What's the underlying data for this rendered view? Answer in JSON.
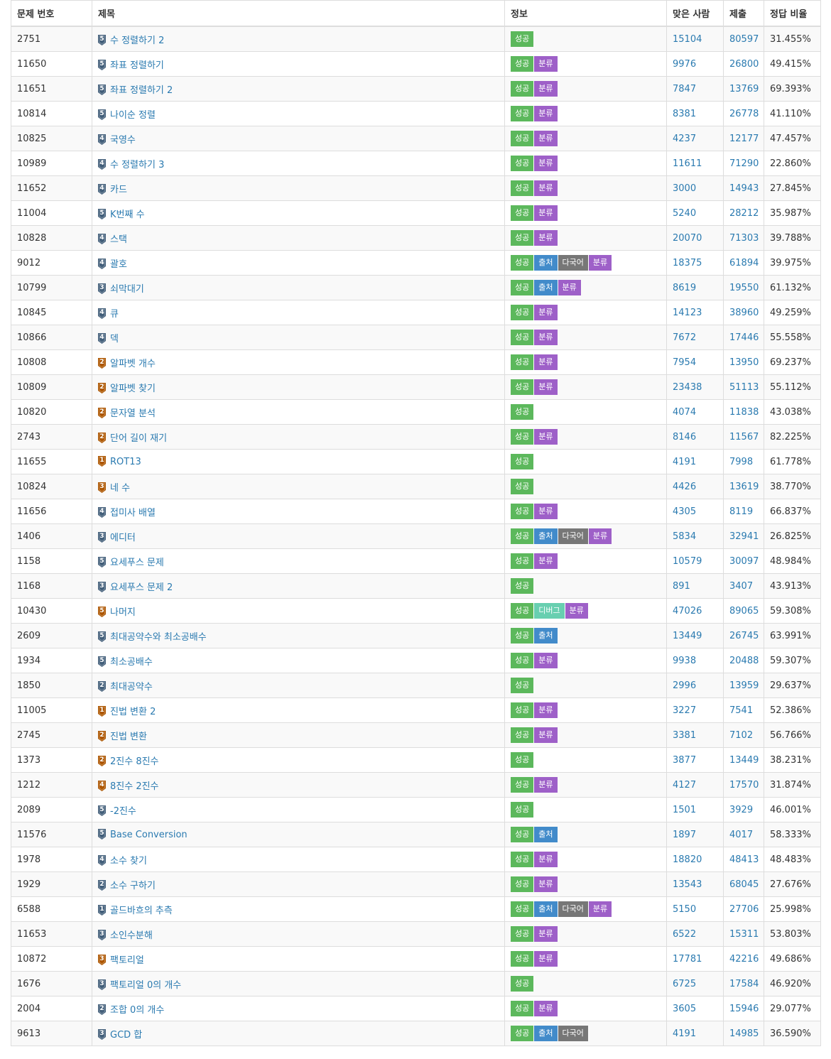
{
  "header": {
    "id": "문제 번호",
    "title": "제목",
    "info": "정보",
    "solved": "맞은 사람",
    "submit": "제출",
    "ratio": "정답 비율"
  },
  "badge_labels": {
    "ok": "성공",
    "src": "출처",
    "ml": "다국어",
    "cls": "분류",
    "dbg": "디버그"
  },
  "tier_colors": {
    "silver": "#435f7a",
    "bronze": "#ad5600"
  },
  "badge_colors": {
    "ok": "#5cb85c",
    "src": "#428bca",
    "ml": "#777777",
    "cls": "#9e60c8",
    "dbg": "#68cfb0"
  },
  "rows": [
    {
      "id": "2751",
      "tier": "silver",
      "level": "5",
      "title": "수 정렬하기 2",
      "badges": [
        "ok"
      ],
      "solved": "15104",
      "submit": "80597",
      "ratio": "31.455%"
    },
    {
      "id": "11650",
      "tier": "silver",
      "level": "5",
      "title": "좌표 정렬하기",
      "badges": [
        "ok",
        "cls"
      ],
      "solved": "9976",
      "submit": "26800",
      "ratio": "49.415%"
    },
    {
      "id": "11651",
      "tier": "silver",
      "level": "5",
      "title": "좌표 정렬하기 2",
      "badges": [
        "ok",
        "cls"
      ],
      "solved": "7847",
      "submit": "13769",
      "ratio": "69.393%"
    },
    {
      "id": "10814",
      "tier": "silver",
      "level": "5",
      "title": "나이순 정렬",
      "badges": [
        "ok",
        "cls"
      ],
      "solved": "8381",
      "submit": "26778",
      "ratio": "41.110%"
    },
    {
      "id": "10825",
      "tier": "silver",
      "level": "4",
      "title": "국영수",
      "badges": [
        "ok",
        "cls"
      ],
      "solved": "4237",
      "submit": "12177",
      "ratio": "47.457%"
    },
    {
      "id": "10989",
      "tier": "silver",
      "level": "4",
      "title": "수 정렬하기 3",
      "badges": [
        "ok",
        "cls"
      ],
      "solved": "11611",
      "submit": "71290",
      "ratio": "22.860%"
    },
    {
      "id": "11652",
      "tier": "silver",
      "level": "4",
      "title": "카드",
      "badges": [
        "ok",
        "cls"
      ],
      "solved": "3000",
      "submit": "14943",
      "ratio": "27.845%"
    },
    {
      "id": "11004",
      "tier": "silver",
      "level": "5",
      "title": "K번째 수",
      "badges": [
        "ok",
        "cls"
      ],
      "solved": "5240",
      "submit": "28212",
      "ratio": "35.987%"
    },
    {
      "id": "10828",
      "tier": "silver",
      "level": "4",
      "title": "스택",
      "badges": [
        "ok",
        "cls"
      ],
      "solved": "20070",
      "submit": "71303",
      "ratio": "39.788%"
    },
    {
      "id": "9012",
      "tier": "silver",
      "level": "4",
      "title": "괄호",
      "badges": [
        "ok",
        "src",
        "ml",
        "cls"
      ],
      "solved": "18375",
      "submit": "61894",
      "ratio": "39.975%"
    },
    {
      "id": "10799",
      "tier": "silver",
      "level": "3",
      "title": "쇠막대기",
      "badges": [
        "ok",
        "src",
        "cls"
      ],
      "solved": "8619",
      "submit": "19550",
      "ratio": "61.132%"
    },
    {
      "id": "10845",
      "tier": "silver",
      "level": "4",
      "title": "큐",
      "badges": [
        "ok",
        "cls"
      ],
      "solved": "14123",
      "submit": "38960",
      "ratio": "49.259%"
    },
    {
      "id": "10866",
      "tier": "silver",
      "level": "4",
      "title": "덱",
      "badges": [
        "ok",
        "cls"
      ],
      "solved": "7672",
      "submit": "17446",
      "ratio": "55.558%"
    },
    {
      "id": "10808",
      "tier": "bronze",
      "level": "2",
      "title": "알파벳 개수",
      "badges": [
        "ok",
        "cls"
      ],
      "solved": "7954",
      "submit": "13950",
      "ratio": "69.237%"
    },
    {
      "id": "10809",
      "tier": "bronze",
      "level": "2",
      "title": "알파벳 찾기",
      "badges": [
        "ok",
        "cls"
      ],
      "solved": "23438",
      "submit": "51113",
      "ratio": "55.112%"
    },
    {
      "id": "10820",
      "tier": "bronze",
      "level": "2",
      "title": "문자열 분석",
      "badges": [
        "ok"
      ],
      "solved": "4074",
      "submit": "11838",
      "ratio": "43.038%"
    },
    {
      "id": "2743",
      "tier": "bronze",
      "level": "2",
      "title": "단어 길이 재기",
      "badges": [
        "ok",
        "cls"
      ],
      "solved": "8146",
      "submit": "11567",
      "ratio": "82.225%"
    },
    {
      "id": "11655",
      "tier": "bronze",
      "level": "1",
      "title": "ROT13",
      "badges": [
        "ok"
      ],
      "solved": "4191",
      "submit": "7998",
      "ratio": "61.778%"
    },
    {
      "id": "10824",
      "tier": "bronze",
      "level": "3",
      "title": "네 수",
      "badges": [
        "ok"
      ],
      "solved": "4426",
      "submit": "13619",
      "ratio": "38.770%"
    },
    {
      "id": "11656",
      "tier": "silver",
      "level": "4",
      "title": "접미사 배열",
      "badges": [
        "ok",
        "cls"
      ],
      "solved": "4305",
      "submit": "8119",
      "ratio": "66.837%"
    },
    {
      "id": "1406",
      "tier": "silver",
      "level": "3",
      "title": "에디터",
      "badges": [
        "ok",
        "src",
        "ml",
        "cls"
      ],
      "solved": "5834",
      "submit": "32941",
      "ratio": "26.825%"
    },
    {
      "id": "1158",
      "tier": "silver",
      "level": "5",
      "title": "요세푸스 문제",
      "badges": [
        "ok",
        "cls"
      ],
      "solved": "10579",
      "submit": "30097",
      "ratio": "48.984%"
    },
    {
      "id": "1168",
      "tier": "silver",
      "level": "3",
      "title": "요세푸스 문제 2",
      "badges": [
        "ok"
      ],
      "solved": "891",
      "submit": "3407",
      "ratio": "43.913%"
    },
    {
      "id": "10430",
      "tier": "bronze",
      "level": "5",
      "title": "나머지",
      "badges": [
        "ok",
        "dbg",
        "cls"
      ],
      "solved": "47026",
      "submit": "89065",
      "ratio": "59.308%"
    },
    {
      "id": "2609",
      "tier": "silver",
      "level": "5",
      "title": "최대공약수와 최소공배수",
      "badges": [
        "ok",
        "src"
      ],
      "solved": "13449",
      "submit": "26745",
      "ratio": "63.991%"
    },
    {
      "id": "1934",
      "tier": "silver",
      "level": "5",
      "title": "최소공배수",
      "badges": [
        "ok",
        "cls"
      ],
      "solved": "9938",
      "submit": "20488",
      "ratio": "59.307%"
    },
    {
      "id": "1850",
      "tier": "silver",
      "level": "2",
      "title": "최대공약수",
      "badges": [
        "ok"
      ],
      "solved": "2996",
      "submit": "13959",
      "ratio": "29.637%"
    },
    {
      "id": "11005",
      "tier": "bronze",
      "level": "1",
      "title": "진법 변환 2",
      "badges": [
        "ok",
        "cls"
      ],
      "solved": "3227",
      "submit": "7541",
      "ratio": "52.386%"
    },
    {
      "id": "2745",
      "tier": "bronze",
      "level": "2",
      "title": "진법 변환",
      "badges": [
        "ok",
        "cls"
      ],
      "solved": "3381",
      "submit": "7102",
      "ratio": "56.766%"
    },
    {
      "id": "1373",
      "tier": "bronze",
      "level": "2",
      "title": "2진수 8진수",
      "badges": [
        "ok"
      ],
      "solved": "3877",
      "submit": "13449",
      "ratio": "38.231%"
    },
    {
      "id": "1212",
      "tier": "bronze",
      "level": "4",
      "title": "8진수 2진수",
      "badges": [
        "ok",
        "cls"
      ],
      "solved": "4127",
      "submit": "17570",
      "ratio": "31.874%"
    },
    {
      "id": "2089",
      "tier": "silver",
      "level": "5",
      "title": "-2진수",
      "badges": [
        "ok"
      ],
      "solved": "1501",
      "submit": "3929",
      "ratio": "46.001%"
    },
    {
      "id": "11576",
      "tier": "silver",
      "level": "5",
      "title": "Base Conversion",
      "badges": [
        "ok",
        "src"
      ],
      "solved": "1897",
      "submit": "4017",
      "ratio": "58.333%"
    },
    {
      "id": "1978",
      "tier": "silver",
      "level": "4",
      "title": "소수 찾기",
      "badges": [
        "ok",
        "cls"
      ],
      "solved": "18820",
      "submit": "48413",
      "ratio": "48.483%"
    },
    {
      "id": "1929",
      "tier": "silver",
      "level": "2",
      "title": "소수 구하기",
      "badges": [
        "ok",
        "cls"
      ],
      "solved": "13543",
      "submit": "68045",
      "ratio": "27.676%"
    },
    {
      "id": "6588",
      "tier": "silver",
      "level": "1",
      "title": "골드바흐의 추측",
      "badges": [
        "ok",
        "src",
        "ml",
        "cls"
      ],
      "solved": "5150",
      "submit": "27706",
      "ratio": "25.998%"
    },
    {
      "id": "11653",
      "tier": "silver",
      "level": "3",
      "title": "소인수분해",
      "badges": [
        "ok",
        "cls"
      ],
      "solved": "6522",
      "submit": "15311",
      "ratio": "53.803%"
    },
    {
      "id": "10872",
      "tier": "bronze",
      "level": "3",
      "title": "팩토리얼",
      "badges": [
        "ok",
        "cls"
      ],
      "solved": "17781",
      "submit": "42216",
      "ratio": "49.686%"
    },
    {
      "id": "1676",
      "tier": "silver",
      "level": "3",
      "title": "팩토리얼 0의 개수",
      "badges": [
        "ok"
      ],
      "solved": "6725",
      "submit": "17584",
      "ratio": "46.920%"
    },
    {
      "id": "2004",
      "tier": "silver",
      "level": "2",
      "title": "조합 0의 개수",
      "badges": [
        "ok",
        "cls"
      ],
      "solved": "3605",
      "submit": "15946",
      "ratio": "29.077%"
    },
    {
      "id": "9613",
      "tier": "silver",
      "level": "3",
      "title": "GCD 합",
      "badges": [
        "ok",
        "src",
        "ml"
      ],
      "solved": "4191",
      "submit": "14985",
      "ratio": "36.590%"
    }
  ]
}
